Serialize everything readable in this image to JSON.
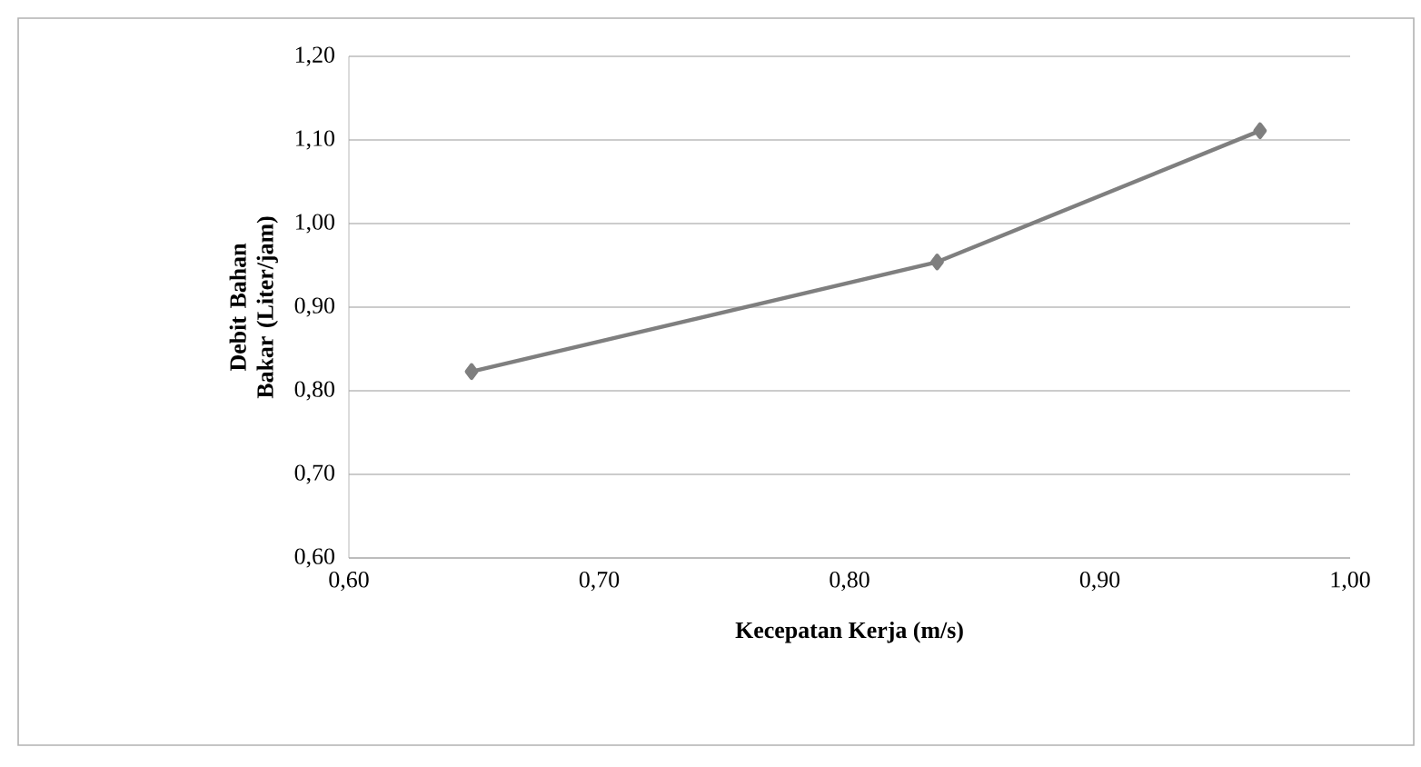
{
  "chart_data": {
    "type": "line",
    "xlabel": "Kecepatan Kerja (m/s)",
    "ylabel": "Debit Bahan Bakar (Liter/jam)",
    "x": [
      0.649,
      0.835,
      0.964
    ],
    "series": [
      {
        "color": "#7f7f7f",
        "values": [
          0.823,
          0.954,
          1.111
        ]
      }
    ],
    "xlim": [
      0.6,
      1.0
    ],
    "ylim": [
      0.6,
      1.2
    ],
    "xticks": [
      {
        "value": 0.6,
        "label": "0,60"
      },
      {
        "value": 0.7,
        "label": "0,70"
      },
      {
        "value": 0.8,
        "label": "0,80"
      },
      {
        "value": 0.9,
        "label": "0,90"
      },
      {
        "value": 1.0,
        "label": "1,00"
      }
    ],
    "yticks": [
      {
        "value": 0.6,
        "label": "0,60"
      },
      {
        "value": 0.7,
        "label": "0,70"
      },
      {
        "value": 0.8,
        "label": "0,80"
      },
      {
        "value": 0.9,
        "label": "0,90"
      },
      {
        "value": 1.0,
        "label": "1,00"
      },
      {
        "value": 1.1,
        "label": "1,10"
      },
      {
        "value": 1.2,
        "label": "1,20"
      }
    ],
    "grid": "y",
    "marker": "diamond",
    "line_style": "solid"
  }
}
